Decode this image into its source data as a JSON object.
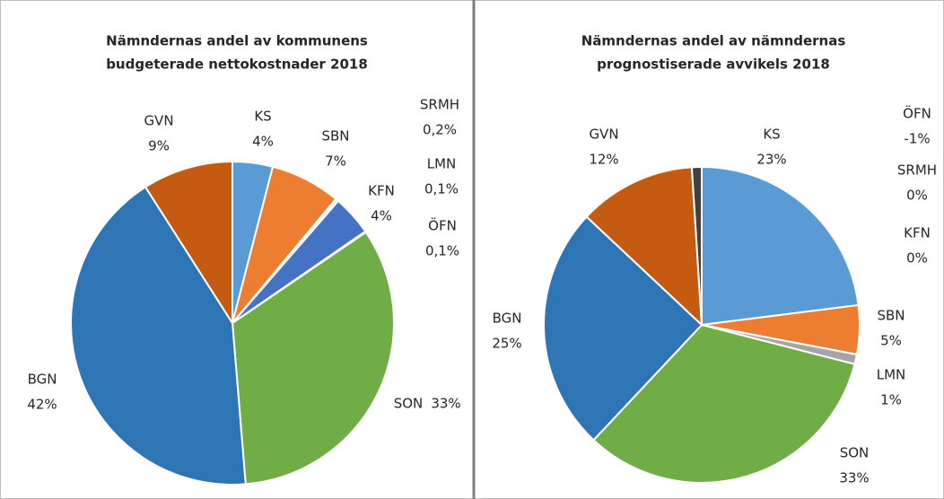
{
  "chart_data": [
    {
      "type": "pie",
      "title": [
        "Nämndernas andel av kommunens",
        "budgeterade nettokostnader 2018"
      ],
      "categories": [
        "KS",
        "SBN",
        "SRMH",
        "LMN",
        "KFN",
        "ÖFN",
        "SON",
        "BGN",
        "GVN"
      ],
      "values": [
        4,
        7,
        0.2,
        0.1,
        4,
        0.1,
        33,
        42,
        9
      ],
      "value_labels": [
        "4%",
        "7%",
        "0,2%",
        "0,1%",
        "4%",
        "0,1%",
        "33%",
        "42%",
        "9%"
      ],
      "colors": [
        "#5b9bd5",
        "#ed7d31",
        "#a5a5a5",
        "#7f7f7f",
        "#4472c4",
        "#d9d9d9",
        "#70ad47",
        "#2e75b6",
        "#c55a11"
      ]
    },
    {
      "type": "pie",
      "title": [
        "Nämndernas andel av nämndernas",
        "prognostiserade avvikels 2018"
      ],
      "categories": [
        "KS",
        "SBN",
        "LMN",
        "SON",
        "BGN",
        "GVN",
        "ÖFN",
        "SRMH",
        "KFN"
      ],
      "values": [
        23,
        5,
        1,
        33,
        25,
        12,
        -1,
        0,
        0
      ],
      "value_labels": [
        "23%",
        "5%",
        "1%",
        "33%",
        "25%",
        "12%",
        "-1%",
        "0%",
        "0%"
      ],
      "colors": [
        "#5b9bd5",
        "#ed7d31",
        "#a5a5a5",
        "#70ad47",
        "#2e75b6",
        "#c55a11",
        "#404040",
        "#7f7f7f",
        "#4472c4"
      ]
    }
  ]
}
